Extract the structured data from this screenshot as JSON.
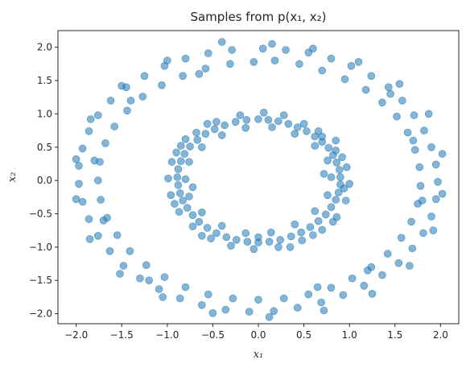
{
  "chart_data": {
    "type": "scatter",
    "title": "Samples from p(x₁, x₂)",
    "xlabel": "x₁",
    "ylabel": "x₂",
    "xlim": [
      -2.2,
      2.2
    ],
    "ylim": [
      -2.15,
      2.25
    ],
    "xticks": [
      "−2.0",
      "−1.5",
      "−1.0",
      "−0.5",
      "0.0",
      "0.5",
      "1.0",
      "1.5",
      "2.0"
    ],
    "yticks": [
      "−2.0",
      "−1.5",
      "−1.0",
      "−0.5",
      "0.0",
      "0.5",
      "1.0",
      "1.5",
      "2.0"
    ],
    "grid": false,
    "marker_color": "#1f77b4",
    "marker_alpha": 0.55,
    "series": [
      {
        "points": [
          [
            0.0,
            0.92
          ],
          [
            0.11,
            0.91
          ],
          [
            0.22,
            0.89
          ],
          [
            0.33,
            0.85
          ],
          [
            0.43,
            0.8
          ],
          [
            0.53,
            0.74
          ],
          [
            0.62,
            0.66
          ],
          [
            0.7,
            0.58
          ],
          [
            0.77,
            0.49
          ],
          [
            0.82,
            0.38
          ],
          [
            0.86,
            0.27
          ],
          [
            0.89,
            0.16
          ],
          [
            0.9,
            0.05
          ],
          [
            0.9,
            -0.06
          ],
          [
            0.88,
            -0.18
          ],
          [
            0.85,
            -0.29
          ],
          [
            0.8,
            -0.4
          ],
          [
            0.74,
            -0.51
          ],
          [
            0.66,
            -0.61
          ],
          [
            0.57,
            -0.7
          ],
          [
            0.47,
            -0.78
          ],
          [
            0.36,
            -0.84
          ],
          [
            0.24,
            -0.89
          ],
          [
            0.12,
            -0.92
          ],
          [
            0.0,
            -0.93
          ],
          [
            -0.12,
            -0.92
          ],
          [
            -0.24,
            -0.89
          ],
          [
            -0.35,
            -0.85
          ],
          [
            -0.46,
            -0.79
          ],
          [
            -0.56,
            -0.71
          ],
          [
            -0.65,
            -0.62
          ],
          [
            -0.72,
            -0.52
          ],
          [
            -0.78,
            -0.41
          ],
          [
            -0.83,
            -0.3
          ],
          [
            -0.86,
            -0.19
          ],
          [
            -0.88,
            -0.07
          ],
          [
            -0.89,
            0.05
          ],
          [
            -0.88,
            0.17
          ],
          [
            -0.85,
            0.29
          ],
          [
            -0.81,
            0.4
          ],
          [
            -0.75,
            0.51
          ],
          [
            -0.67,
            0.61
          ],
          [
            -0.58,
            0.7
          ],
          [
            -0.48,
            0.77
          ],
          [
            -0.37,
            0.83
          ],
          [
            -0.25,
            0.88
          ],
          [
            -0.13,
            0.91
          ],
          [
            0.06,
            1.02
          ],
          [
            0.28,
            0.98
          ],
          [
            0.5,
            0.85
          ],
          [
            0.7,
            0.66
          ],
          [
            0.85,
            0.45
          ],
          [
            0.97,
            0.2
          ],
          [
            1.0,
            -0.05
          ],
          [
            0.96,
            -0.3
          ],
          [
            0.86,
            -0.55
          ],
          [
            0.7,
            -0.74
          ],
          [
            0.48,
            -0.9
          ],
          [
            0.22,
            -1.0
          ],
          [
            -0.05,
            -1.03
          ],
          [
            -0.3,
            -0.98
          ],
          [
            -0.52,
            -0.87
          ],
          [
            -0.72,
            -0.69
          ],
          [
            -0.87,
            -0.47
          ],
          [
            -0.96,
            -0.22
          ],
          [
            -0.99,
            0.03
          ],
          [
            -0.95,
            0.28
          ],
          [
            -0.85,
            0.52
          ],
          [
            -0.68,
            0.72
          ],
          [
            -0.46,
            0.88
          ],
          [
            -0.2,
            0.98
          ],
          [
            0.15,
            0.8
          ],
          [
            0.4,
            0.7
          ],
          [
            0.62,
            0.52
          ],
          [
            0.76,
            0.3
          ],
          [
            0.8,
            0.05
          ],
          [
            0.76,
            -0.22
          ],
          [
            0.62,
            -0.46
          ],
          [
            0.4,
            -0.66
          ],
          [
            0.14,
            -0.78
          ],
          [
            -0.14,
            -0.79
          ],
          [
            -0.4,
            -0.68
          ],
          [
            -0.62,
            -0.48
          ],
          [
            -0.76,
            -0.24
          ],
          [
            -0.8,
            0.02
          ],
          [
            -0.76,
            0.28
          ],
          [
            -0.62,
            0.5
          ],
          [
            -0.4,
            0.68
          ],
          [
            -0.14,
            0.79
          ],
          [
            0.35,
            -1.0
          ],
          [
            0.6,
            -0.82
          ],
          [
            0.82,
            -0.62
          ],
          [
            0.94,
            -0.12
          ],
          [
            0.92,
            0.35
          ],
          [
            0.66,
            0.74
          ],
          [
            -0.56,
            0.85
          ],
          [
            -0.9,
            0.42
          ],
          [
            -0.92,
            -0.35
          ],
          [
            -0.62,
            -0.83
          ],
          [
            0.0,
            -0.85
          ],
          [
            0.72,
            0.1
          ],
          [
            -0.72,
            -0.1
          ],
          [
            0.85,
            0.6
          ],
          [
            -0.8,
            0.62
          ],
          [
            0.05,
            1.98
          ],
          [
            0.3,
            1.96
          ],
          [
            0.55,
            1.92
          ],
          [
            0.8,
            1.83
          ],
          [
            1.02,
            1.72
          ],
          [
            1.24,
            1.57
          ],
          [
            1.43,
            1.4
          ],
          [
            1.58,
            1.2
          ],
          [
            1.71,
            0.98
          ],
          [
            1.82,
            0.75
          ],
          [
            1.9,
            0.5
          ],
          [
            1.95,
            0.24
          ],
          [
            1.97,
            -0.02
          ],
          [
            1.95,
            -0.28
          ],
          [
            1.9,
            -0.54
          ],
          [
            1.81,
            -0.79
          ],
          [
            1.69,
            -1.02
          ],
          [
            1.54,
            -1.24
          ],
          [
            1.36,
            -1.42
          ],
          [
            1.16,
            -1.58
          ],
          [
            0.93,
            -1.72
          ],
          [
            0.69,
            -1.83
          ],
          [
            0.43,
            -1.91
          ],
          [
            0.17,
            -1.96
          ],
          [
            -0.1,
            -1.97
          ],
          [
            -0.36,
            -1.94
          ],
          [
            -0.62,
            -1.87
          ],
          [
            -0.86,
            -1.77
          ],
          [
            -1.09,
            -1.63
          ],
          [
            -1.3,
            -1.47
          ],
          [
            -1.48,
            -1.28
          ],
          [
            -1.63,
            -1.06
          ],
          [
            -1.76,
            -0.83
          ],
          [
            -1.86,
            -0.58
          ],
          [
            -1.93,
            -0.32
          ],
          [
            -1.97,
            -0.05
          ],
          [
            -1.97,
            0.22
          ],
          [
            -1.93,
            0.48
          ],
          [
            -1.86,
            0.74
          ],
          [
            -1.76,
            0.98
          ],
          [
            -1.62,
            1.2
          ],
          [
            -1.45,
            1.4
          ],
          [
            -1.25,
            1.57
          ],
          [
            -1.03,
            1.72
          ],
          [
            -0.8,
            1.83
          ],
          [
            -0.55,
            1.91
          ],
          [
            -0.29,
            1.96
          ],
          [
            0.18,
            1.8
          ],
          [
            0.45,
            1.75
          ],
          [
            0.7,
            1.65
          ],
          [
            0.95,
            1.52
          ],
          [
            1.18,
            1.36
          ],
          [
            1.36,
            1.17
          ],
          [
            1.52,
            0.96
          ],
          [
            1.64,
            0.72
          ],
          [
            1.72,
            0.46
          ],
          [
            1.77,
            0.2
          ],
          [
            1.78,
            -0.08
          ],
          [
            1.75,
            -0.35
          ],
          [
            1.68,
            -0.62
          ],
          [
            1.57,
            -0.86
          ],
          [
            1.42,
            -1.1
          ],
          [
            1.24,
            -1.3
          ],
          [
            1.03,
            -1.47
          ],
          [
            0.8,
            -1.61
          ],
          [
            0.55,
            -1.71
          ],
          [
            0.28,
            -1.77
          ],
          [
            0.0,
            -1.79
          ],
          [
            -0.28,
            -1.77
          ],
          [
            -0.55,
            -1.71
          ],
          [
            -0.8,
            -1.6
          ],
          [
            -1.03,
            -1.45
          ],
          [
            -1.23,
            -1.27
          ],
          [
            -1.41,
            -1.06
          ],
          [
            -1.55,
            -0.82
          ],
          [
            -1.66,
            -0.56
          ],
          [
            -1.73,
            -0.29
          ],
          [
            -1.76,
            0.0
          ],
          [
            -1.74,
            0.28
          ],
          [
            -1.68,
            0.56
          ],
          [
            -1.58,
            0.81
          ],
          [
            -1.44,
            1.05
          ],
          [
            -1.27,
            1.26
          ],
          [
            -1.06,
            1.43
          ],
          [
            -0.83,
            1.57
          ],
          [
            -0.58,
            1.68
          ],
          [
            -0.31,
            1.75
          ],
          [
            -0.05,
            1.78
          ],
          [
            -0.4,
            2.08
          ],
          [
            0.15,
            2.05
          ],
          [
            0.6,
            1.98
          ],
          [
            1.1,
            1.78
          ],
          [
            1.55,
            1.45
          ],
          [
            1.87,
            1.0
          ],
          [
            2.02,
            0.4
          ],
          [
            2.02,
            -0.2
          ],
          [
            1.92,
            -0.75
          ],
          [
            1.66,
            -1.28
          ],
          [
            1.25,
            -1.7
          ],
          [
            0.72,
            -1.95
          ],
          [
            0.12,
            -2.05
          ],
          [
            -0.5,
            -1.99
          ],
          [
            -1.05,
            -1.75
          ],
          [
            -1.52,
            -1.4
          ],
          [
            -1.85,
            -0.88
          ],
          [
            -2.0,
            -0.28
          ],
          [
            -2.0,
            0.32
          ],
          [
            -1.84,
            0.92
          ],
          [
            -1.5,
            1.42
          ],
          [
            -1.0,
            1.8
          ],
          [
            -1.4,
            1.2
          ],
          [
            -1.2,
            -1.5
          ],
          [
            1.2,
            -1.35
          ],
          [
            1.45,
            1.3
          ],
          [
            -1.7,
            -0.6
          ],
          [
            1.7,
            0.6
          ],
          [
            -0.65,
            1.6
          ],
          [
            0.65,
            -1.6
          ],
          [
            1.8,
            -0.3
          ],
          [
            -1.8,
            0.3
          ]
        ]
      }
    ]
  }
}
